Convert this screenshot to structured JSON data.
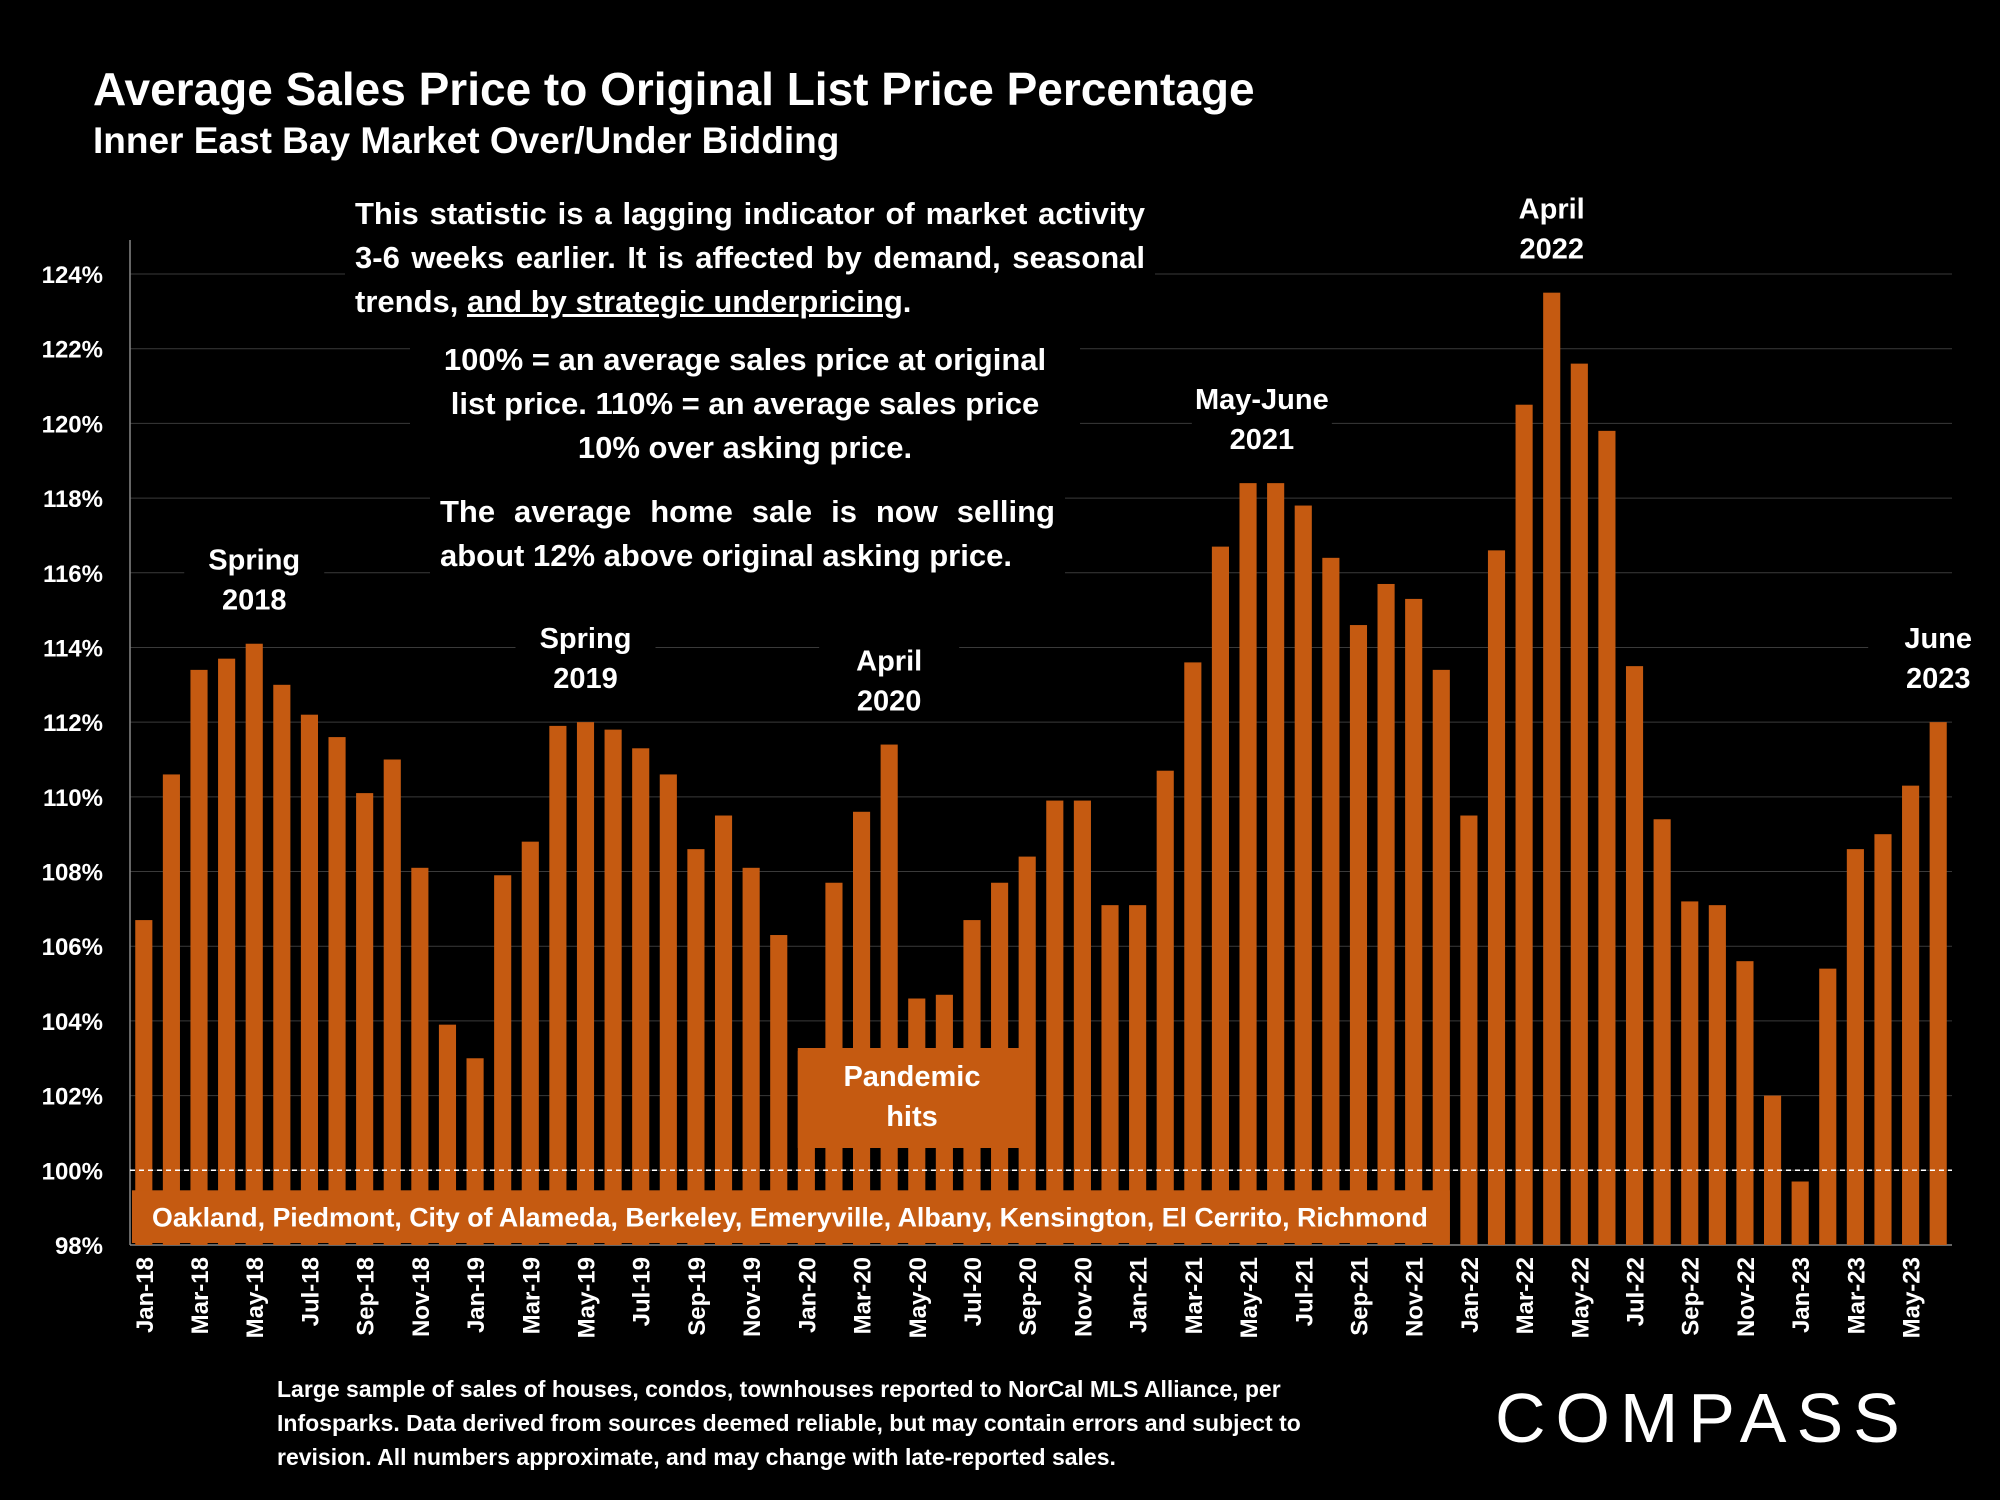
{
  "title": "Average Sales Price to Original List Price Percentage",
  "subtitle": "Inner East Bay Market Over/Under Bidding",
  "notes": {
    "lag_text": "This statistic is a lagging indicator of market activity 3-6 weeks earlier. It is affected by demand, seasonal trends, ",
    "lag_underlined": "and by strategic underpricing",
    "lag_end": ".",
    "definition": "100% = an average sales price at original list price. 110% = an average sales price 10% over asking price.",
    "current": "The average home sale is now selling about 12% above original asking price."
  },
  "footnote": "Large sample of sales of houses, condos, townhouses reported to NorCal MLS Alliance, per Infosparks. Data derived from sources deemed reliable, but may contain errors and subject to revision. All numbers approximate, and may change with late-reported sales.",
  "logo": "COMPASS",
  "colors": {
    "bar": "#c55a11",
    "background": "#000000",
    "grid": "#3a3a3a",
    "text": "#ffffff"
  },
  "chart_data": {
    "type": "bar",
    "ylim": [
      98,
      125
    ],
    "yticks": [
      "98%",
      "100%",
      "102%",
      "104%",
      "106%",
      "108%",
      "110%",
      "112%",
      "114%",
      "116%",
      "118%",
      "120%",
      "122%",
      "124%"
    ],
    "ytick_values": [
      98,
      100,
      102,
      104,
      106,
      108,
      110,
      112,
      114,
      116,
      118,
      120,
      122,
      124
    ],
    "grid": true,
    "reference_line": 100,
    "categories": [
      "Jan-18",
      "Feb-18",
      "Mar-18",
      "Apr-18",
      "May-18",
      "Jun-18",
      "Jul-18",
      "Aug-18",
      "Sep-18",
      "Oct-18",
      "Nov-18",
      "Dec-18",
      "Jan-19",
      "Feb-19",
      "Mar-19",
      "Apr-19",
      "May-19",
      "Jun-19",
      "Jul-19",
      "Aug-19",
      "Sep-19",
      "Oct-19",
      "Nov-19",
      "Dec-19",
      "Jan-20",
      "Feb-20",
      "Mar-20",
      "Apr-20",
      "May-20",
      "Jun-20",
      "Jul-20",
      "Aug-20",
      "Sep-20",
      "Oct-20",
      "Nov-20",
      "Dec-20",
      "Jan-21",
      "Feb-21",
      "Mar-21",
      "Apr-21",
      "May-21",
      "Jun-21",
      "Jul-21",
      "Aug-21",
      "Sep-21",
      "Oct-21",
      "Nov-21",
      "Dec-21",
      "Jan-22",
      "Feb-22",
      "Mar-22",
      "Apr-22",
      "May-22",
      "Jun-22",
      "Jul-22",
      "Aug-22",
      "Sep-22",
      "Oct-22",
      "Nov-22",
      "Dec-22",
      "Jan-23",
      "Feb-23",
      "Mar-23",
      "Apr-23",
      "May-23",
      "Jun-23"
    ],
    "shown_xlabels": [
      "Jan-18",
      "Mar-18",
      "May-18",
      "Jul-18",
      "Sep-18",
      "Nov-18",
      "Jan-19",
      "Mar-19",
      "May-19",
      "Jul-19",
      "Sep-19",
      "Nov-19",
      "Jan-20",
      "Mar-20",
      "May-20",
      "Jul-20",
      "Sep-20",
      "Nov-20",
      "Jan-21",
      "Mar-21",
      "May-21",
      "Jul-21",
      "Sep-21",
      "Nov-21",
      "Jan-22",
      "Mar-22",
      "May-22",
      "Jul-22",
      "Sep-22",
      "Nov-22",
      "Jan-23",
      "Mar-23",
      "May-23"
    ],
    "values": [
      106.7,
      110.6,
      113.4,
      113.7,
      114.1,
      113.0,
      112.2,
      111.6,
      110.1,
      111.0,
      108.1,
      103.9,
      103.0,
      107.9,
      108.8,
      111.9,
      112.0,
      111.8,
      111.3,
      110.6,
      108.6,
      109.5,
      108.1,
      106.3,
      103.2,
      107.7,
      109.6,
      111.4,
      104.6,
      104.7,
      106.7,
      107.7,
      108.4,
      109.9,
      109.9,
      107.1,
      107.1,
      110.7,
      113.6,
      116.7,
      118.4,
      118.4,
      117.8,
      116.4,
      114.6,
      115.7,
      115.3,
      113.4,
      109.5,
      116.6,
      120.5,
      123.5,
      121.6,
      119.8,
      113.5,
      109.4,
      107.2,
      107.1,
      105.6,
      102.0,
      99.7,
      105.4,
      108.6,
      109.0,
      110.3,
      112.0
    ],
    "annotations": [
      {
        "lines": [
          "Spring",
          "2018"
        ],
        "index": 4,
        "value": 114.1
      },
      {
        "lines": [
          "Spring",
          "2019"
        ],
        "index": 16,
        "value": 112.0
      },
      {
        "lines": [
          "April",
          "2020"
        ],
        "index": 27,
        "value": 111.4
      },
      {
        "lines": [
          "May-June",
          "2021"
        ],
        "index": 40.5,
        "value": 118.4
      },
      {
        "lines": [
          "April",
          "2022"
        ],
        "index": 51,
        "value": 123.5
      },
      {
        "lines": [
          "June",
          "2023"
        ],
        "index": 65,
        "value": 112.0
      }
    ],
    "pandemic_label": [
      "Pandemic",
      "hits"
    ],
    "region_label": "Oakland, Piedmont, City of Alameda, Berkeley, Emeryville, Albany, Kensington, El Cerrito, Richmond"
  }
}
